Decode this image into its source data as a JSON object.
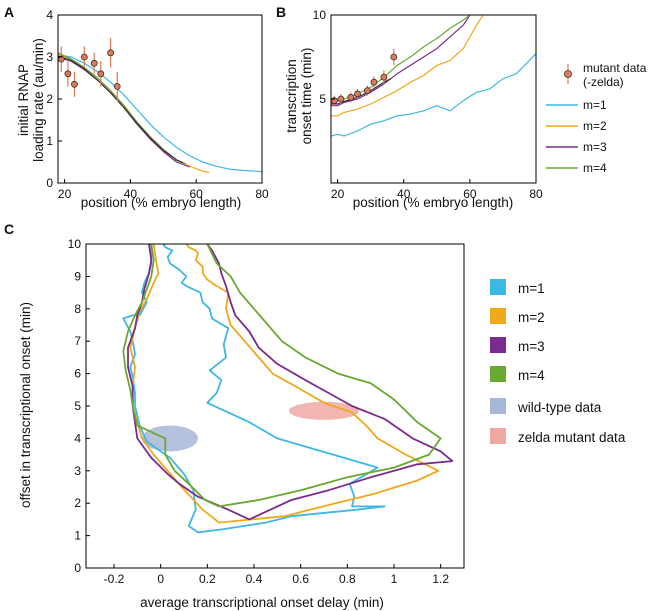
{
  "panels": [
    {
      "letter": "A",
      "type": "line",
      "xlabel": "position (% embryo length)",
      "ylabel": [
        "initial RNAP",
        "loading rate (au/min)"
      ],
      "xlim": [
        18,
        80
      ],
      "ylim": [
        0,
        4
      ],
      "xticks": [
        20,
        40,
        60,
        80
      ],
      "yticks": [
        0,
        1,
        2,
        3,
        4
      ],
      "series": [
        {
          "name": "m=1",
          "color": "#3db7e4",
          "x": [
            18,
            22,
            26,
            30,
            34,
            38,
            42,
            46,
            50,
            54,
            58,
            62,
            66,
            70,
            74,
            78,
            80
          ],
          "y": [
            3.05,
            3.0,
            2.85,
            2.65,
            2.4,
            2.1,
            1.75,
            1.4,
            1.1,
            0.85,
            0.65,
            0.5,
            0.4,
            0.33,
            0.3,
            0.28,
            0.27
          ]
        },
        {
          "name": "m=2",
          "color": "#f0a81c",
          "x": [
            18,
            22,
            26,
            30,
            34,
            38,
            42,
            46,
            50,
            54,
            58,
            62,
            64
          ],
          "y": [
            3.05,
            2.95,
            2.75,
            2.5,
            2.2,
            1.85,
            1.45,
            1.1,
            0.8,
            0.55,
            0.4,
            0.28,
            0.25
          ]
        },
        {
          "name": "m=3",
          "color": "#7b2a8f",
          "x": [
            18,
            22,
            26,
            30,
            34,
            38,
            42,
            46,
            50,
            54,
            58
          ],
          "y": [
            3.0,
            2.9,
            2.7,
            2.45,
            2.15,
            1.8,
            1.4,
            1.05,
            0.75,
            0.5,
            0.38
          ]
        },
        {
          "name": "m=4",
          "color": "#6aa832",
          "x": [
            18,
            22,
            26,
            30,
            34,
            38,
            42,
            46,
            50,
            54,
            57
          ],
          "y": [
            3.1,
            2.95,
            2.75,
            2.5,
            2.2,
            1.85,
            1.45,
            1.1,
            0.8,
            0.55,
            0.45
          ]
        },
        {
          "name": "black",
          "color": "#333333",
          "x": [
            18,
            22,
            26,
            30,
            34,
            38,
            42,
            46,
            50,
            54,
            56
          ],
          "y": [
            3.02,
            2.92,
            2.72,
            2.45,
            2.15,
            1.8,
            1.42,
            1.08,
            0.78,
            0.55,
            0.48
          ]
        }
      ],
      "points": {
        "x": [
          19,
          21,
          23,
          26,
          29,
          31,
          34,
          36
        ],
        "y": [
          2.95,
          2.6,
          2.35,
          3.0,
          2.85,
          2.6,
          3.1,
          2.3
        ],
        "err": [
          0.3,
          0.3,
          0.3,
          0.25,
          0.25,
          0.3,
          0.35,
          0.35
        ]
      }
    },
    {
      "letter": "B",
      "type": "line",
      "xlabel": "position (% embryo length)",
      "ylabel": [
        "transcription",
        "onset time (min)"
      ],
      "xlim": [
        18,
        80
      ],
      "ylim": [
        0,
        10
      ],
      "xticks": [
        20,
        40,
        60,
        80
      ],
      "yticks": [
        5,
        10
      ],
      "series": [
        {
          "name": "m=1",
          "color": "#3db7e4",
          "x": [
            18,
            20,
            22,
            26,
            30,
            34,
            38,
            42,
            46,
            50,
            54,
            58,
            62,
            66,
            70,
            74,
            78,
            80
          ],
          "y": [
            2.8,
            2.9,
            2.8,
            3.1,
            3.5,
            3.7,
            4.0,
            4.1,
            4.3,
            4.6,
            4.3,
            4.9,
            5.4,
            5.6,
            6.2,
            6.5,
            7.3,
            7.7
          ]
        },
        {
          "name": "m=2",
          "color": "#f0a81c",
          "x": [
            18,
            20,
            22,
            26,
            30,
            34,
            38,
            42,
            46,
            50,
            54,
            58,
            62,
            64
          ],
          "y": [
            4.0,
            4.0,
            4.2,
            4.4,
            4.7,
            5.1,
            5.5,
            6.0,
            6.4,
            7.0,
            7.3,
            8.0,
            9.4,
            10.0
          ]
        },
        {
          "name": "m=3",
          "color": "#7b2a8f",
          "x": [
            18,
            20,
            22,
            26,
            30,
            34,
            38,
            42,
            46,
            50,
            54,
            58,
            60
          ],
          "y": [
            4.6,
            4.6,
            4.8,
            5.0,
            5.4,
            5.9,
            6.5,
            7.0,
            7.5,
            8.0,
            8.7,
            9.4,
            10.0
          ]
        },
        {
          "name": "m=4",
          "color": "#6aa832",
          "x": [
            18,
            20,
            22,
            26,
            30,
            34,
            38,
            42,
            46,
            50,
            54,
            58,
            60
          ],
          "y": [
            4.8,
            4.9,
            5.0,
            5.3,
            5.7,
            6.3,
            7.0,
            7.5,
            8.1,
            8.6,
            9.2,
            9.7,
            10.0
          ]
        },
        {
          "name": "black",
          "color": "#333333",
          "x": [
            18,
            20,
            22,
            26,
            30,
            34,
            36
          ],
          "y": [
            4.7,
            4.7,
            4.85,
            5.1,
            5.5,
            6.0,
            6.2
          ]
        }
      ],
      "points": {
        "x": [
          19,
          21,
          24,
          26,
          29,
          31,
          34,
          37
        ],
        "y": [
          4.9,
          5.0,
          5.1,
          5.3,
          5.5,
          6.0,
          6.3,
          7.5
        ],
        "err": [
          0.3,
          0.3,
          0.3,
          0.3,
          0.3,
          0.35,
          0.4,
          0.5
        ]
      }
    },
    {
      "letter": "C",
      "type": "line",
      "xlabel": "average transcriptional onset delay (min)",
      "ylabel": [
        "offset in transcriptional onset (min)"
      ],
      "xlim": [
        -0.32,
        1.3
      ],
      "ylim": [
        0,
        10
      ],
      "xticks": [
        -0.2,
        0,
        0.2,
        0.4,
        0.6,
        0.8,
        1,
        1.2
      ],
      "xticklabels": [
        "-0.2",
        "0",
        "0.2",
        "0.4",
        "0.6",
        "0.8",
        "1",
        "1.2"
      ],
      "yticks": [
        0,
        1,
        2,
        3,
        4,
        5,
        6,
        7,
        8,
        9,
        10
      ],
      "series": [
        {
          "name": "m=1",
          "color": "#3db7e4",
          "x": [
            -0.04,
            -0.04,
            -0.05,
            -0.07,
            -0.08,
            -0.06,
            -0.09,
            -0.12,
            -0.16,
            -0.13,
            -0.12,
            -0.11,
            -0.13,
            -0.12,
            -0.11,
            -0.11,
            -0.09,
            -0.06,
            0.04,
            0.1,
            0.14,
            0.15,
            0.12,
            0.16,
            0.16,
            0.27,
            0.45,
            0.56,
            0.84,
            0.96,
            0.88,
            0.82,
            0.83,
            0.81,
            0.93,
            0.5,
            0.38,
            0.2,
            0.24,
            0.26,
            0.21,
            0.28,
            0.27,
            0.29,
            0.22,
            0.21,
            0.18,
            0.17,
            0.11,
            0.09,
            0.11,
            0.08,
            0.04,
            0.03,
            0.05,
            0.02,
            0.01
          ],
          "y": [
            10,
            9.4,
            9.1,
            8.8,
            8.5,
            8.2,
            7.8,
            7.8,
            7.7,
            7.3,
            7.0,
            6.6,
            6.2,
            5.9,
            5.4,
            5.0,
            4.4,
            3.9,
            3.4,
            2.9,
            2.4,
            1.8,
            1.3,
            1.1,
            1.1,
            1.2,
            1.4,
            1.6,
            1.8,
            1.9,
            1.9,
            1.9,
            2.2,
            2.6,
            3.1,
            4.0,
            4.5,
            5.1,
            5.4,
            5.8,
            6.1,
            6.5,
            6.9,
            7.4,
            7.7,
            8.0,
            8.2,
            8.5,
            8.7,
            8.8,
            9.0,
            9.2,
            9.4,
            9.6,
            9.8,
            9.9,
            10
          ]
        },
        {
          "name": "m=2",
          "color": "#f0a81c",
          "x": [
            -0.03,
            -0.02,
            -0.01,
            -0.03,
            -0.06,
            -0.09,
            -0.11,
            -0.13,
            -0.11,
            -0.12,
            -0.12,
            -0.1,
            -0.08,
            -0.03,
            0.03,
            0.09,
            0.18,
            0.25,
            0.53,
            0.75,
            0.92,
            1.1,
            1.19,
            1.05,
            0.93,
            0.88,
            0.82,
            0.7,
            0.58,
            0.48,
            0.42,
            0.36,
            0.3,
            0.28,
            0.29,
            0.24,
            0.2,
            0.18,
            0.18,
            0.15,
            0.16,
            0.15,
            0.12,
            0.11
          ],
          "y": [
            10,
            9.5,
            9.1,
            8.8,
            8.3,
            7.9,
            7.4,
            6.8,
            6.2,
            5.6,
            5.0,
            4.5,
            4.0,
            3.5,
            3.0,
            2.5,
            1.8,
            1.4,
            1.6,
            2.0,
            2.3,
            2.7,
            3.0,
            3.5,
            4.0,
            4.4,
            4.8,
            5.1,
            5.6,
            6.0,
            6.5,
            7.0,
            7.5,
            8.0,
            8.5,
            8.7,
            8.9,
            9.1,
            9.3,
            9.5,
            9.7,
            9.8,
            9.9,
            10
          ]
        },
        {
          "name": "m=3",
          "color": "#7b2a8f",
          "x": [
            -0.05,
            -0.04,
            -0.05,
            -0.07,
            -0.08,
            -0.1,
            -0.11,
            -0.14,
            -0.14,
            -0.12,
            -0.12,
            -0.11,
            -0.1,
            -0.04,
            0.03,
            0.08,
            0.16,
            0.29,
            0.38,
            0.56,
            0.72,
            0.9,
            1.1,
            1.25,
            1.2,
            1.08,
            0.96,
            0.82,
            0.72,
            0.62,
            0.5,
            0.42,
            0.38,
            0.32,
            0.3,
            0.28,
            0.26,
            0.25,
            0.22,
            0.2
          ],
          "y": [
            10,
            9.5,
            9.1,
            8.6,
            8.2,
            7.8,
            7.4,
            6.8,
            6.2,
            5.6,
            5.0,
            4.5,
            4.0,
            3.4,
            2.9,
            2.6,
            2.2,
            1.8,
            1.5,
            2.1,
            2.4,
            2.8,
            3.2,
            3.3,
            3.6,
            4.0,
            4.6,
            5.0,
            5.4,
            5.8,
            6.3,
            6.8,
            7.3,
            7.8,
            8.2,
            8.7,
            9.1,
            9.4,
            9.8,
            10
          ]
        },
        {
          "name": "m=4",
          "color": "#6aa832",
          "x": [
            -0.04,
            -0.03,
            -0.04,
            -0.06,
            -0.08,
            -0.11,
            -0.14,
            -0.16,
            -0.15,
            -0.13,
            -0.12,
            -0.1,
            0.02,
            0.02,
            0.06,
            0.12,
            0.19,
            0.25,
            0.42,
            0.6,
            0.8,
            1.0,
            1.15,
            1.2,
            1.1,
            1.0,
            0.9,
            0.76,
            0.62,
            0.52,
            0.46,
            0.4,
            0.34,
            0.3,
            0.24,
            0.22,
            0.2
          ],
          "y": [
            10,
            9.5,
            9.0,
            8.6,
            8.2,
            7.8,
            7.3,
            6.7,
            6.1,
            5.5,
            5.0,
            4.4,
            4.0,
            3.5,
            3.0,
            2.6,
            2.1,
            1.9,
            2.1,
            2.4,
            2.8,
            3.1,
            3.5,
            4.0,
            4.5,
            5.2,
            5.7,
            6.0,
            6.5,
            7.0,
            7.5,
            8.0,
            8.5,
            9.0,
            9.4,
            9.7,
            10
          ]
        }
      ],
      "ellipses": [
        {
          "name": "wild-type data",
          "color": "#a7b7d7",
          "cx": 0.04,
          "cy": 4.0,
          "rx": 0.12,
          "ry": 0.4
        },
        {
          "name": "zelda mutant data",
          "color": "#eda9a1",
          "cx": 0.7,
          "cy": 4.85,
          "rx": 0.15,
          "ry": 0.28
        }
      ]
    }
  ],
  "legend_ab": {
    "point_label": "mutant data",
    "point_label2": "(-zelda)",
    "items": [
      {
        "label": "m=1",
        "color": "#3db7e4"
      },
      {
        "label": "m=2",
        "color": "#f0a81c"
      },
      {
        "label": "m=3",
        "color": "#7b2a8f"
      },
      {
        "label": "m=4",
        "color": "#6aa832"
      }
    ]
  },
  "legend_c": {
    "items": [
      {
        "label": "m=1",
        "color": "#3db7e4"
      },
      {
        "label": "m=2",
        "color": "#f0a81c"
      },
      {
        "label": "m=3",
        "color": "#7b2a8f"
      },
      {
        "label": "m=4",
        "color": "#6aa832"
      },
      {
        "label": "wild-type data",
        "color": "#a7b7d7"
      },
      {
        "label": "zelda mutant data",
        "color": "#eda9a1"
      }
    ]
  },
  "point_color": "#e07a56"
}
